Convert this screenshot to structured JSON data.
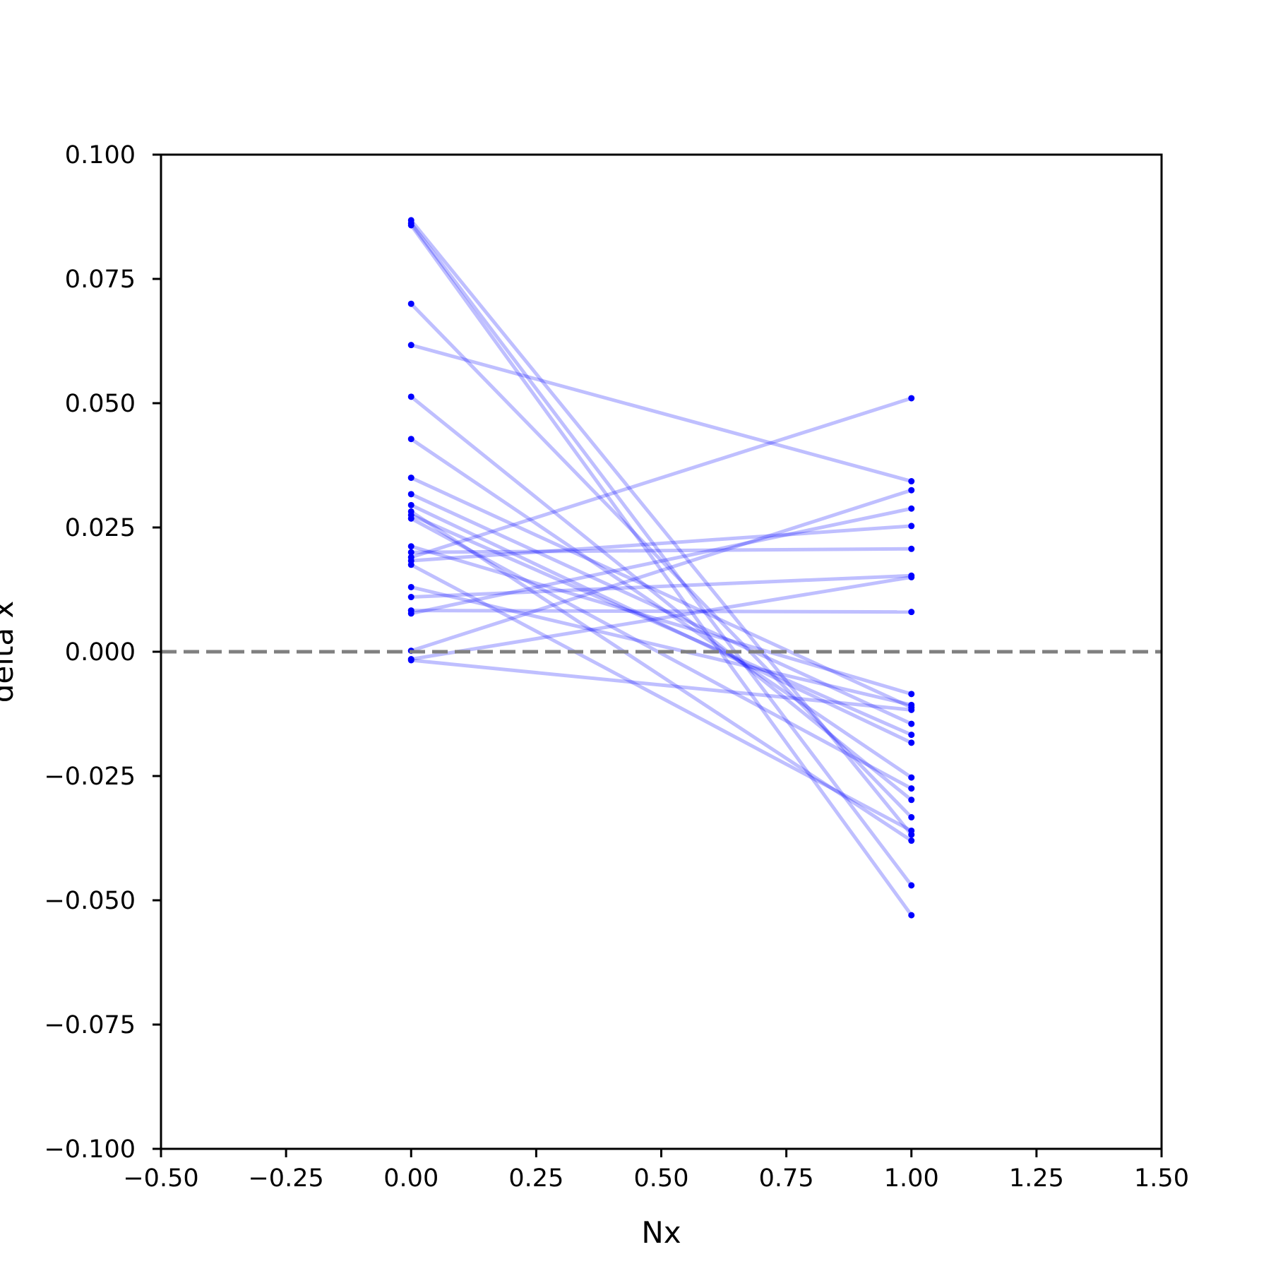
{
  "chart_data": {
    "type": "line",
    "title": "",
    "xlabel": "Nx",
    "ylabel": "delta x",
    "xlim": [
      -0.5,
      1.5
    ],
    "ylim": [
      -0.1,
      0.1
    ],
    "xticks": [
      -0.5,
      -0.25,
      0.0,
      0.25,
      0.5,
      0.75,
      1.0,
      1.25,
      1.5
    ],
    "xtick_labels": [
      "−0.50",
      "−0.25",
      "0.00",
      "0.25",
      "0.50",
      "0.75",
      "1.00",
      "1.25",
      "1.50"
    ],
    "yticks": [
      -0.1,
      -0.075,
      -0.05,
      -0.025,
      0.0,
      0.025,
      0.05,
      0.075,
      0.1
    ],
    "ytick_labels": [
      "−0.100",
      "−0.075",
      "−0.050",
      "−0.025",
      "0.000",
      "0.025",
      "0.050",
      "0.075",
      "0.100"
    ],
    "grid": false,
    "reference_line": {
      "y": 0.0,
      "style": "dashed",
      "color": "#808080"
    },
    "series_color": "#0000ff",
    "line_alpha": 0.25,
    "pairs": [
      {
        "x": [
          0,
          1
        ],
        "y": [
          0.0868,
          -0.0368
        ]
      },
      {
        "x": [
          0,
          1
        ],
        "y": [
          0.0862,
          -0.047
        ]
      },
      {
        "x": [
          0,
          1
        ],
        "y": [
          0.0858,
          -0.053
        ]
      },
      {
        "x": [
          0,
          1
        ],
        "y": [
          0.07,
          -0.0333
        ]
      },
      {
        "x": [
          0,
          1
        ],
        "y": [
          0.0617,
          0.0343
        ]
      },
      {
        "x": [
          0,
          1
        ],
        "y": [
          0.0513,
          -0.0298
        ]
      },
      {
        "x": [
          0,
          1
        ],
        "y": [
          0.0428,
          -0.0253
        ]
      },
      {
        "x": [
          0,
          1
        ],
        "y": [
          0.035,
          -0.0112
        ]
      },
      {
        "x": [
          0,
          1
        ],
        "y": [
          0.0317,
          -0.0145
        ]
      },
      {
        "x": [
          0,
          1
        ],
        "y": [
          0.0295,
          -0.0183
        ]
      },
      {
        "x": [
          0,
          1
        ],
        "y": [
          0.0282,
          -0.038
        ]
      },
      {
        "x": [
          0,
          1
        ],
        "y": [
          0.0275,
          -0.0167
        ]
      },
      {
        "x": [
          0,
          1
        ],
        "y": [
          0.0268,
          -0.0275
        ]
      },
      {
        "x": [
          0,
          1
        ],
        "y": [
          0.0212,
          -0.0085
        ]
      },
      {
        "x": [
          0,
          1
        ],
        "y": [
          0.02,
          0.0207
        ]
      },
      {
        "x": [
          0,
          1
        ],
        "y": [
          0.019,
          0.051
        ]
      },
      {
        "x": [
          0,
          1
        ],
        "y": [
          0.0183,
          0.0253
        ]
      },
      {
        "x": [
          0,
          1
        ],
        "y": [
          0.0175,
          -0.036
        ]
      },
      {
        "x": [
          0,
          1
        ],
        "y": [
          0.013,
          -0.0107
        ]
      },
      {
        "x": [
          0,
          1
        ],
        "y": [
          0.011,
          0.0153
        ]
      },
      {
        "x": [
          0,
          1
        ],
        "y": [
          0.0083,
          0.008
        ]
      },
      {
        "x": [
          0,
          1
        ],
        "y": [
          0.0077,
          0.0288
        ]
      },
      {
        "x": [
          0,
          1
        ],
        "y": [
          0.0002,
          0.0325
        ]
      },
      {
        "x": [
          0,
          1
        ],
        "y": [
          -0.0015,
          0.015
        ]
      },
      {
        "x": [
          0,
          1
        ],
        "y": [
          -0.0017,
          -0.0117
        ]
      }
    ]
  }
}
